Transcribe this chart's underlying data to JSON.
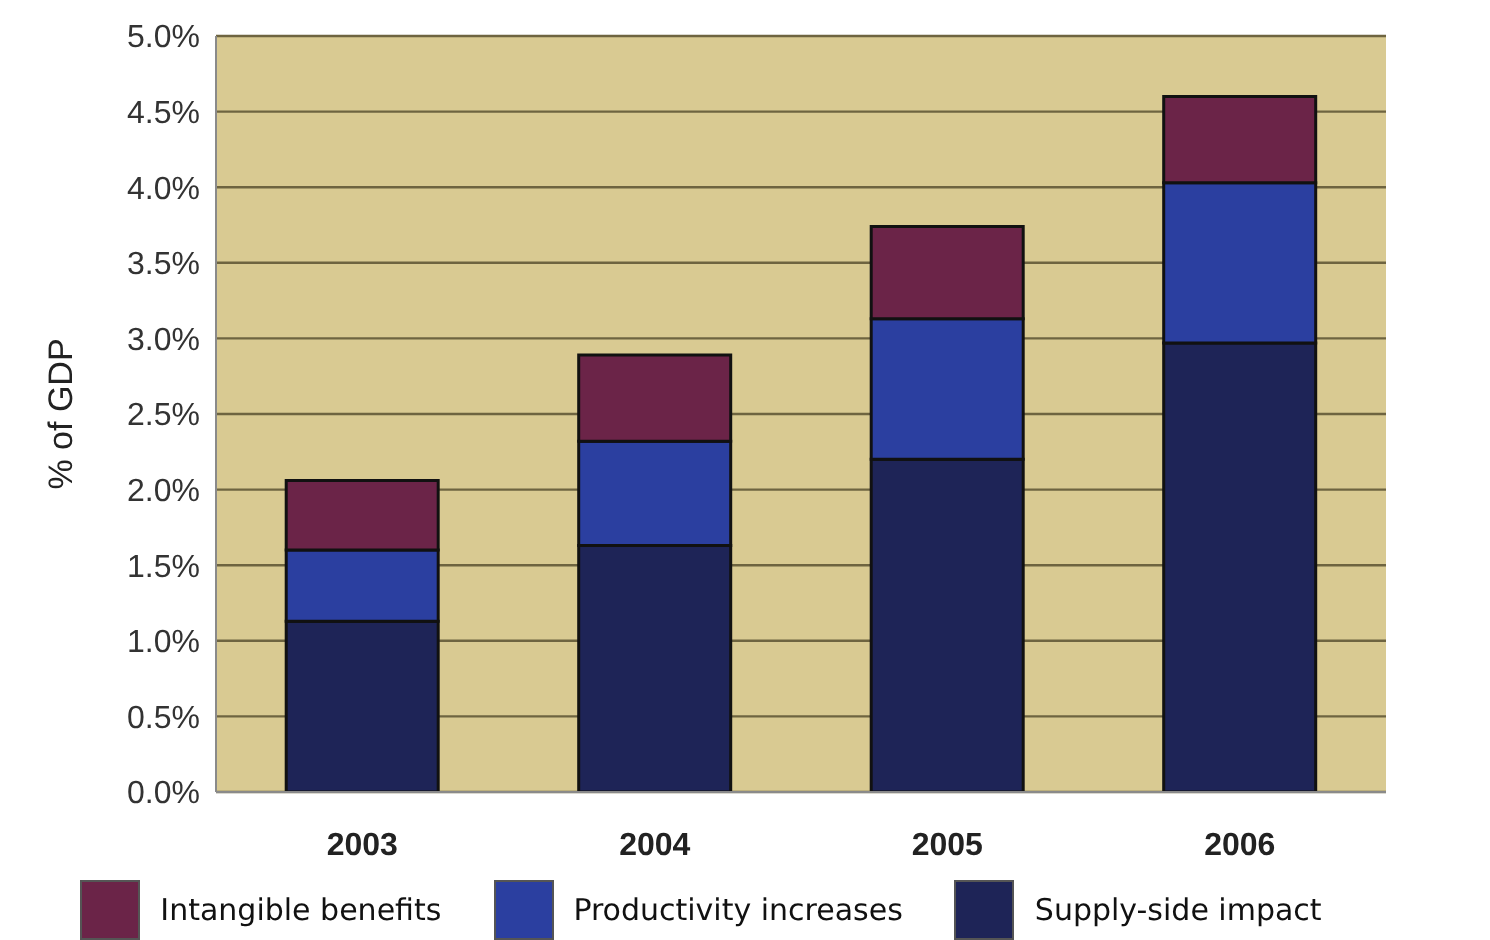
{
  "chart_data": {
    "type": "bar",
    "stacked": true,
    "ylabel": "% of GDP",
    "categories": [
      "2003",
      "2004",
      "2005",
      "2006"
    ],
    "series": [
      {
        "name": "Supply-side impact",
        "color": "#1e2457",
        "values": [
          1.13,
          1.63,
          2.2,
          2.97
        ]
      },
      {
        "name": "Productivity increases",
        "color": "#2b3fa0",
        "values": [
          0.47,
          0.69,
          0.93,
          1.06
        ]
      },
      {
        "name": "Intangible benefits",
        "color": "#6b2448",
        "values": [
          0.46,
          0.57,
          0.61,
          0.57
        ]
      }
    ],
    "ylim": [
      0,
      5
    ],
    "yticks": [
      {
        "value": 0,
        "label": "0.0%"
      },
      {
        "value": 0.5,
        "label": "0.5%"
      },
      {
        "value": 1,
        "label": "1.0%"
      },
      {
        "value": 1.5,
        "label": "1.5%"
      },
      {
        "value": 2,
        "label": "2.0%"
      },
      {
        "value": 2.5,
        "label": "2.5%"
      },
      {
        "value": 3,
        "label": "3.0%"
      },
      {
        "value": 3.5,
        "label": "3.5%"
      },
      {
        "value": 4,
        "label": "4.0%"
      },
      {
        "value": 4.5,
        "label": "4.5%"
      },
      {
        "value": 5,
        "label": "5.0%"
      }
    ],
    "grid": "y",
    "legend": "bottom"
  }
}
